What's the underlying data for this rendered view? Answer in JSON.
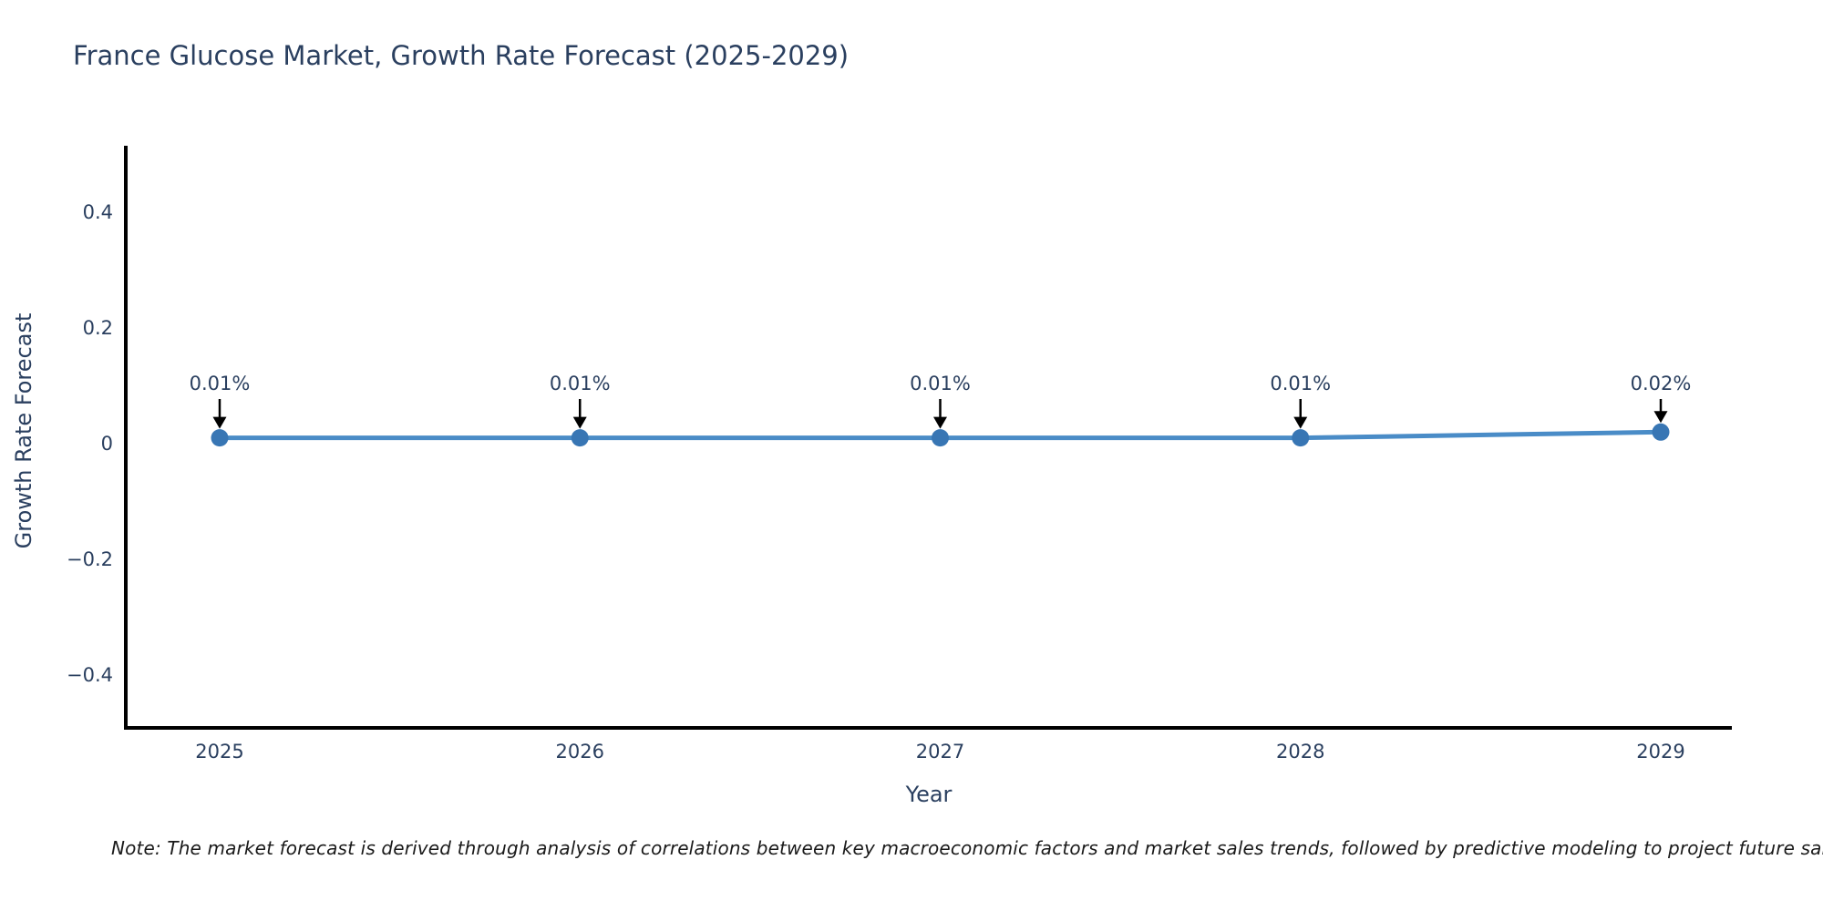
{
  "title": "France Glucose Market, Growth Rate Forecast (2025-2029)",
  "note": "Note: The market forecast is derived through analysis of correlations between key macroeconomic factors and market sales trends, followed by predictive modeling to project future sales",
  "chart_data": {
    "type": "line",
    "title": "France Glucose Market, Growth Rate Forecast (2025-2029)",
    "xlabel": "Year",
    "ylabel": "Growth Rate Forecast",
    "categories": [
      "2025",
      "2026",
      "2027",
      "2028",
      "2029"
    ],
    "x": [
      2025,
      2026,
      2027,
      2028,
      2029
    ],
    "series": [
      {
        "name": "Growth Rate Forecast",
        "values": [
          0.01,
          0.01,
          0.01,
          0.01,
          0.02
        ],
        "point_labels": [
          "0.01%",
          "0.01%",
          "0.01%",
          "0.01%",
          "0.02%"
        ]
      }
    ],
    "yticks": [
      0.4,
      0.2,
      0,
      -0.2,
      -0.4
    ],
    "ylim": [
      -0.5,
      0.5
    ],
    "grid": false,
    "legend_position": "none",
    "annotation_style": "arrow-down",
    "colors": {
      "line": "#4a8cc7",
      "marker": "#3876b4",
      "axis": "#000000",
      "text": "#2a3f5f",
      "annotation_arrow": "#000000",
      "background": "#ffffff"
    }
  }
}
